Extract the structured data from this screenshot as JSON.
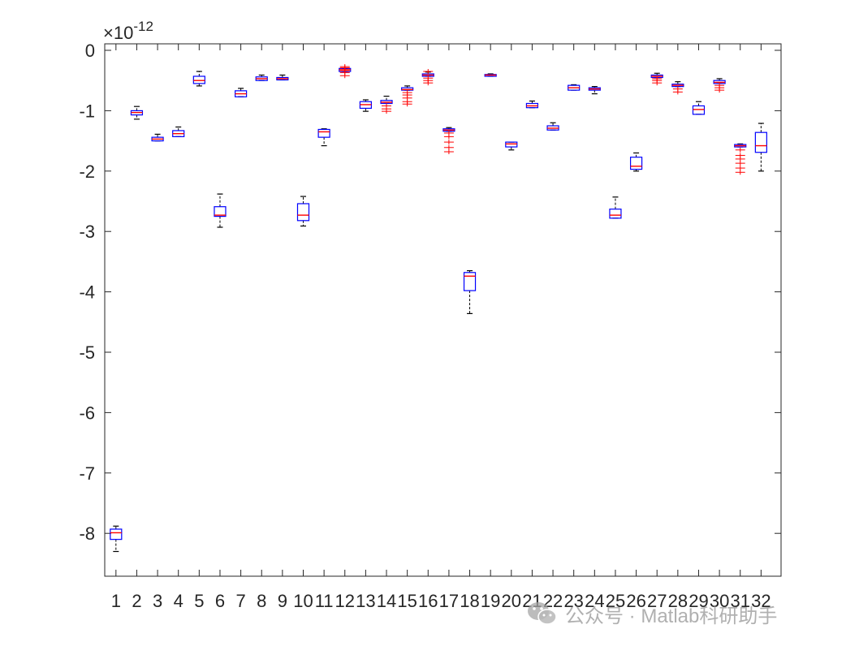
{
  "chart_data": {
    "type": "box",
    "categories": [
      "1",
      "2",
      "3",
      "4",
      "5",
      "6",
      "7",
      "8",
      "9",
      "10",
      "11",
      "12",
      "13",
      "14",
      "15",
      "16",
      "17",
      "18",
      "19",
      "20",
      "21",
      "22",
      "23",
      "24",
      "25",
      "26",
      "27",
      "28",
      "29",
      "30",
      "31",
      "32"
    ],
    "exponent_label": "×10",
    "exponent_power": "-12",
    "ylim": [
      -8.7,
      0.1
    ],
    "yticks": [
      0,
      -1,
      -2,
      -3,
      -4,
      -5,
      -6,
      -7,
      -8
    ],
    "ytick_labels": [
      "0",
      "-1",
      "-2",
      "-3",
      "-4",
      "-5",
      "-6",
      "-7",
      "-8"
    ],
    "grid": false,
    "box_color": "#0000ff",
    "median_color": "#ff0000",
    "whisker_color": "#000000",
    "outlier_color": "#ff0000",
    "boxes": [
      {
        "category": "1",
        "whisker_low": -8.3,
        "q1": -8.1,
        "median": -7.99,
        "q3": -7.93,
        "whisker_high": -7.88,
        "outliers": []
      },
      {
        "category": "2",
        "whisker_low": -1.14,
        "q1": -1.07,
        "median": -1.03,
        "q3": -1.0,
        "whisker_high": -0.93,
        "outliers": []
      },
      {
        "category": "3",
        "whisker_low": -1.5,
        "q1": -1.5,
        "median": -1.47,
        "q3": -1.44,
        "whisker_high": -1.39,
        "outliers": []
      },
      {
        "category": "4",
        "whisker_low": -1.43,
        "q1": -1.43,
        "median": -1.38,
        "q3": -1.33,
        "whisker_high": -1.27,
        "outliers": []
      },
      {
        "category": "5",
        "whisker_low": -0.59,
        "q1": -0.55,
        "median": -0.5,
        "q3": -0.43,
        "whisker_high": -0.35,
        "outliers": []
      },
      {
        "category": "6",
        "whisker_low": -2.93,
        "q1": -2.75,
        "median": -2.73,
        "q3": -2.59,
        "whisker_high": -2.38,
        "outliers": []
      },
      {
        "category": "7",
        "whisker_low": -0.77,
        "q1": -0.77,
        "median": -0.72,
        "q3": -0.67,
        "whisker_high": -0.63,
        "outliers": []
      },
      {
        "category": "8",
        "whisker_low": -0.5,
        "q1": -0.5,
        "median": -0.47,
        "q3": -0.44,
        "whisker_high": -0.41,
        "outliers": []
      },
      {
        "category": "9",
        "whisker_low": -0.49,
        "q1": -0.49,
        "median": -0.47,
        "q3": -0.45,
        "whisker_high": -0.41,
        "outliers": []
      },
      {
        "category": "10",
        "whisker_low": -2.91,
        "q1": -2.82,
        "median": -2.73,
        "q3": -2.54,
        "whisker_high": -2.42,
        "outliers": []
      },
      {
        "category": "11",
        "whisker_low": -1.58,
        "q1": -1.44,
        "median": -1.35,
        "q3": -1.31,
        "whisker_high": -1.3,
        "outliers": []
      },
      {
        "category": "12",
        "whisker_low": -0.35,
        "q1": -0.35,
        "median": -0.32,
        "q3": -0.3,
        "whisker_high": -0.3,
        "outliers": [
          -0.27,
          -0.29,
          -0.34,
          -0.37,
          -0.42
        ]
      },
      {
        "category": "13",
        "whisker_low": -1.01,
        "q1": -0.96,
        "median": -0.9,
        "q3": -0.85,
        "whisker_high": -0.82,
        "outliers": []
      },
      {
        "category": "14",
        "whisker_low": -0.88,
        "q1": -0.88,
        "median": -0.86,
        "q3": -0.83,
        "whisker_high": -0.76,
        "outliers": [
          -0.92,
          -0.97,
          -1.01
        ]
      },
      {
        "category": "15",
        "whisker_low": -0.66,
        "q1": -0.66,
        "median": -0.65,
        "q3": -0.62,
        "whisker_high": -0.59,
        "outliers": [
          -0.7,
          -0.74,
          -0.79,
          -0.85,
          -0.89
        ]
      },
      {
        "category": "16",
        "whisker_low": -0.43,
        "q1": -0.43,
        "median": -0.41,
        "q3": -0.39,
        "whisker_high": -0.36,
        "outliers": [
          -0.35,
          -0.46,
          -0.5,
          -0.54
        ]
      },
      {
        "category": "17",
        "whisker_low": -1.34,
        "q1": -1.34,
        "median": -1.32,
        "q3": -1.3,
        "whisker_high": -1.28,
        "outliers": [
          -1.37,
          -1.43,
          -1.52,
          -1.61,
          -1.68
        ]
      },
      {
        "category": "18",
        "whisker_low": -4.36,
        "q1": -3.98,
        "median": -3.74,
        "q3": -3.68,
        "whisker_high": -3.65,
        "outliers": []
      },
      {
        "category": "19",
        "whisker_low": -0.43,
        "q1": -0.43,
        "median": -0.41,
        "q3": -0.4,
        "whisker_high": -0.39,
        "outliers": []
      },
      {
        "category": "20",
        "whisker_low": -1.65,
        "q1": -1.6,
        "median": -1.55,
        "q3": -1.52,
        "whisker_high": -1.52,
        "outliers": []
      },
      {
        "category": "21",
        "whisker_low": -0.95,
        "q1": -0.95,
        "median": -0.92,
        "q3": -0.88,
        "whisker_high": -0.84,
        "outliers": []
      },
      {
        "category": "22",
        "whisker_low": -1.32,
        "q1": -1.32,
        "median": -1.29,
        "q3": -1.25,
        "whisker_high": -1.2,
        "outliers": []
      },
      {
        "category": "23",
        "whisker_low": -0.66,
        "q1": -0.66,
        "median": -0.62,
        "q3": -0.58,
        "whisker_high": -0.57,
        "outliers": []
      },
      {
        "category": "24",
        "whisker_low": -0.72,
        "q1": -0.66,
        "median": -0.64,
        "q3": -0.62,
        "whisker_high": -0.6,
        "outliers": []
      },
      {
        "category": "25",
        "whisker_low": -2.78,
        "q1": -2.78,
        "median": -2.73,
        "q3": -2.63,
        "whisker_high": -2.43,
        "outliers": []
      },
      {
        "category": "26",
        "whisker_low": -2.0,
        "q1": -1.97,
        "median": -1.92,
        "q3": -1.77,
        "whisker_high": -1.7,
        "outliers": []
      },
      {
        "category": "27",
        "whisker_low": -0.45,
        "q1": -0.45,
        "median": -0.43,
        "q3": -0.41,
        "whisker_high": -0.38,
        "outliers": [
          -0.47,
          -0.5,
          -0.54
        ]
      },
      {
        "category": "28",
        "whisker_low": -0.6,
        "q1": -0.6,
        "median": -0.58,
        "q3": -0.56,
        "whisker_high": -0.52,
        "outliers": [
          -0.64,
          -0.69
        ]
      },
      {
        "category": "29",
        "whisker_low": -1.06,
        "q1": -1.06,
        "median": -0.98,
        "q3": -0.92,
        "whisker_high": -0.85,
        "outliers": []
      },
      {
        "category": "30",
        "whisker_low": -0.55,
        "q1": -0.55,
        "median": -0.53,
        "q3": -0.5,
        "whisker_high": -0.47,
        "outliers": [
          -0.58,
          -0.62,
          -0.66
        ]
      },
      {
        "category": "31",
        "whisker_low": -1.6,
        "q1": -1.6,
        "median": -1.58,
        "q3": -1.56,
        "whisker_high": -1.55,
        "outliers": [
          -1.65,
          -1.74,
          -1.8,
          -1.87,
          -1.95,
          -2.02
        ]
      },
      {
        "category": "32",
        "whisker_low": -2.0,
        "q1": -1.69,
        "median": -1.58,
        "q3": -1.36,
        "whisker_high": -1.21,
        "outliers": []
      }
    ]
  },
  "watermark": {
    "text": "公众号 · Matlab科研助手",
    "icon": "wechat-icon"
  }
}
